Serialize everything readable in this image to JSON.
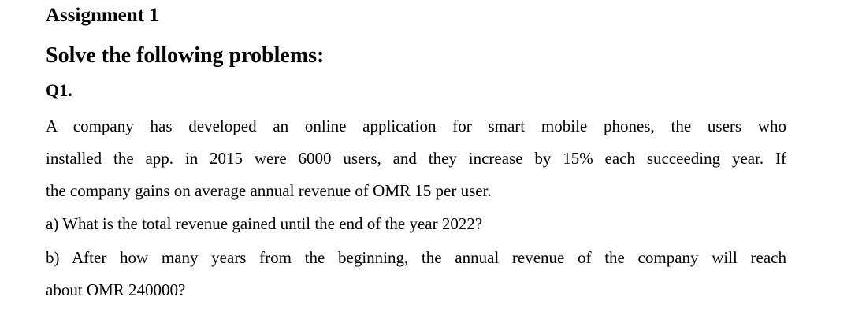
{
  "document": {
    "title": "Assignment 1",
    "subtitle": "Solve the following problems:",
    "question_label": "Q1.",
    "paragraph_lines": [
      "A company has developed an online application for smart mobile phones, the users who",
      "installed the app. in 2015 were 6000 users, and they increase by 15% each succeeding year. If",
      "the company gains on average annual revenue of OMR 15 per user."
    ],
    "part_a": "a) What is the total revenue gained until the end of the year 2022?",
    "part_b_lines": [
      "b) After how many years from the beginning, the annual revenue of the company will reach",
      "about OMR 240000?"
    ]
  }
}
